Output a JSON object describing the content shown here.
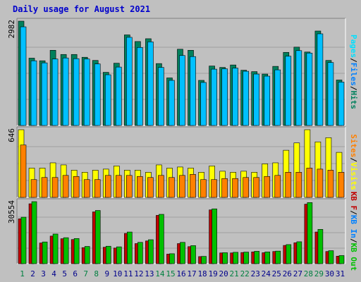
{
  "page": {
    "title": "Daily usage for August 2021"
  },
  "colors": {
    "background": "#c0c0c0",
    "panel": "#c0c0c0",
    "hits": "#00805c",
    "files": "#00c0ff",
    "pages": "#00e0ff",
    "visits": "#ffff00",
    "sites": "#ff8000",
    "kb_in": "#00c000",
    "kb_out": "#c00000",
    "weekend_label": "#008040",
    "weekday_label": "#00008b",
    "legend_sep": "#000000"
  },
  "chart_data": [
    {
      "type": "bar",
      "name": "hits-files-pages",
      "max_label": "2982",
      "ylim": [
        0,
        2982
      ],
      "grid": true,
      "legend": [
        {
          "label": "Pages",
          "color": "#00e0ff"
        },
        {
          "label": "/",
          "color": "#000000"
        },
        {
          "label": "Files",
          "color": "#0080ff"
        },
        {
          "label": "/",
          "color": "#000000"
        },
        {
          "label": "Hits",
          "color": "#00805c"
        }
      ],
      "categories": [
        "1",
        "2",
        "3",
        "4",
        "5",
        "6",
        "7",
        "8",
        "9",
        "10",
        "11",
        "12",
        "13",
        "14",
        "15",
        "16",
        "17",
        "18",
        "19",
        "20",
        "21",
        "22",
        "23",
        "24",
        "25",
        "26",
        "27",
        "28",
        "29",
        "30",
        "31"
      ],
      "series": [
        {
          "name": "Hits",
          "values": [
            2982,
            1925,
            1850,
            2150,
            2030,
            2030,
            1950,
            1860,
            1520,
            1780,
            2590,
            2400,
            2480,
            1770,
            1360,
            2180,
            2150,
            1290,
            1700,
            1660,
            1730,
            1580,
            1540,
            1470,
            1690,
            2090,
            2240,
            2100,
            2700,
            1860,
            1300
          ]
        },
        {
          "name": "Files",
          "values": [
            2820,
            1850,
            1790,
            1900,
            1930,
            1910,
            1900,
            1760,
            1450,
            1670,
            2520,
            2230,
            2390,
            1660,
            1290,
            2000,
            1970,
            1230,
            1610,
            1620,
            1640,
            1550,
            1470,
            1410,
            1590,
            1980,
            2140,
            2070,
            2620,
            1800,
            1240
          ]
        }
      ]
    },
    {
      "type": "bar",
      "name": "visits-sites",
      "max_label": "646",
      "ylim": [
        0,
        646
      ],
      "grid": true,
      "legend": [
        {
          "label": "Sites",
          "color": "#ff8000"
        },
        {
          "label": "/",
          "color": "#000000"
        },
        {
          "label": "Visits",
          "color": "#ffff00"
        }
      ],
      "categories": [
        "1",
        "2",
        "3",
        "4",
        "5",
        "6",
        "7",
        "8",
        "9",
        "10",
        "11",
        "12",
        "13",
        "14",
        "15",
        "16",
        "17",
        "18",
        "19",
        "20",
        "21",
        "22",
        "23",
        "24",
        "25",
        "26",
        "27",
        "28",
        "29",
        "30",
        "31"
      ],
      "series": [
        {
          "name": "Visits",
          "values": [
            646,
            280,
            280,
            330,
            310,
            260,
            240,
            260,
            270,
            300,
            260,
            260,
            240,
            310,
            280,
            290,
            280,
            240,
            300,
            250,
            240,
            250,
            240,
            320,
            330,
            450,
            520,
            646,
            530,
            570,
            430
          ]
        },
        {
          "name": "Sites",
          "values": [
            500,
            170,
            190,
            190,
            210,
            200,
            170,
            170,
            210,
            210,
            210,
            200,
            190,
            210,
            190,
            210,
            220,
            170,
            170,
            180,
            180,
            190,
            190,
            200,
            210,
            240,
            240,
            280,
            270,
            260,
            240
          ]
        }
      ]
    },
    {
      "type": "bar",
      "name": "kb-in-out",
      "max_label": "30554",
      "ylim": [
        0,
        30554
      ],
      "grid": true,
      "legend": [
        {
          "label": "KB F",
          "color": "#c00000"
        },
        {
          "label": "/",
          "color": "#000000"
        },
        {
          "label": "KB In",
          "color": "#0080ff"
        },
        {
          "label": "/",
          "color": "#000000"
        },
        {
          "label": "KB Out",
          "color": "#00c000"
        }
      ],
      "categories": [
        "1",
        "2",
        "3",
        "4",
        "5",
        "6",
        "7",
        "8",
        "9",
        "10",
        "11",
        "12",
        "13",
        "14",
        "15",
        "16",
        "17",
        "18",
        "19",
        "20",
        "21",
        "22",
        "23",
        "24",
        "25",
        "26",
        "27",
        "28",
        "29",
        "30",
        "31"
      ],
      "series": [
        {
          "name": "KB F",
          "values": [
            22100,
            29500,
            10200,
            13600,
            12300,
            11900,
            7900,
            25500,
            8100,
            7700,
            14900,
            9900,
            11200,
            23800,
            4700,
            9900,
            8400,
            3500,
            26500,
            5300,
            5300,
            5500,
            5800,
            5400,
            6000,
            9000,
            10300,
            29300,
            15600,
            6000,
            3700
          ]
        },
        {
          "name": "KB Out",
          "values": [
            22900,
            30554,
            10700,
            14600,
            12800,
            12400,
            8500,
            26200,
            8600,
            8300,
            15600,
            10500,
            11800,
            24300,
            4900,
            10500,
            8900,
            3600,
            27000,
            5400,
            5600,
            5700,
            6100,
            5800,
            6200,
            9400,
            10800,
            30100,
            16900,
            6400,
            4000
          ]
        }
      ]
    }
  ],
  "x_axis": {
    "labels": [
      "1",
      "2",
      "3",
      "4",
      "5",
      "6",
      "7",
      "8",
      "9",
      "10",
      "11",
      "12",
      "13",
      "14",
      "15",
      "16",
      "17",
      "18",
      "19",
      "20",
      "21",
      "22",
      "23",
      "24",
      "25",
      "26",
      "27",
      "28",
      "29",
      "30",
      "31"
    ],
    "weekend_days": [
      "1",
      "7",
      "8",
      "14",
      "15",
      "21",
      "22",
      "28",
      "29"
    ]
  }
}
